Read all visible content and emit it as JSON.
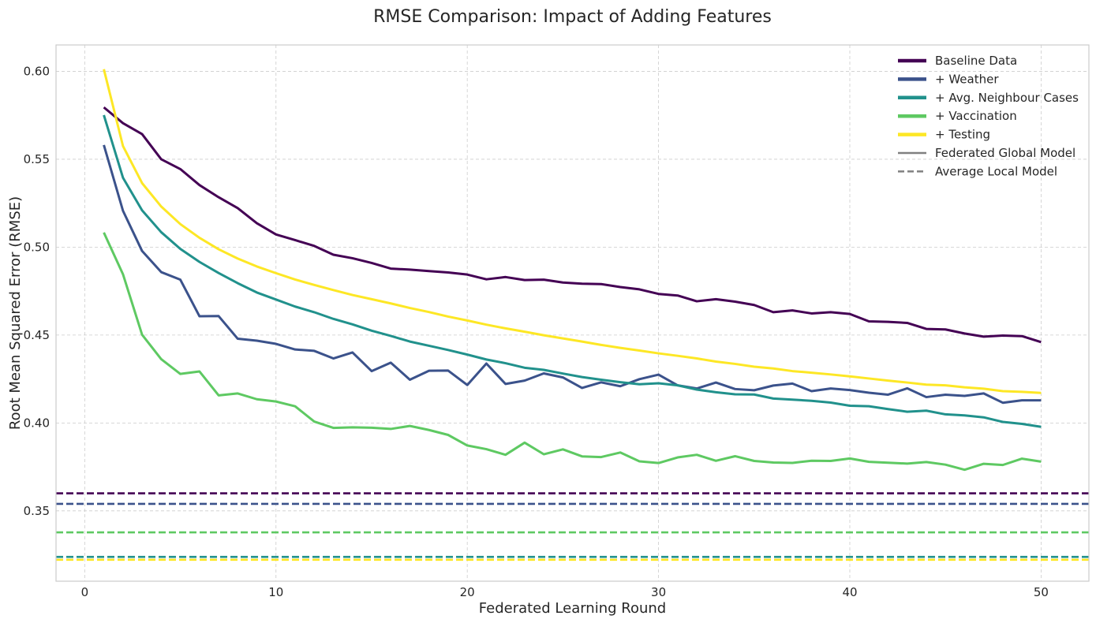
{
  "chart_data": {
    "type": "line",
    "title": "RMSE Comparison: Impact of Adding Features",
    "xlabel": "Federated Learning Round",
    "ylabel": "Root Mean Squared Error (RMSE)",
    "xlim": [
      -1.5,
      52.5
    ],
    "ylim": [
      0.31,
      0.615
    ],
    "xticks": [
      0,
      10,
      20,
      30,
      40,
      50
    ],
    "yticks": [
      0.35,
      0.4,
      0.45,
      0.5,
      0.55,
      0.6
    ],
    "grid": true,
    "legend_position": "top-right",
    "x": [
      1,
      2,
      3,
      4,
      5,
      6,
      7,
      8,
      9,
      10,
      11,
      12,
      13,
      14,
      15,
      16,
      17,
      18,
      19,
      20,
      21,
      22,
      23,
      24,
      25,
      26,
      27,
      28,
      29,
      30,
      31,
      32,
      33,
      34,
      35,
      36,
      37,
      38,
      39,
      40,
      41,
      42,
      43,
      44,
      45,
      46,
      47,
      48,
      49,
      50
    ],
    "series": [
      {
        "name": "Baseline Data",
        "color": "#440154",
        "values": [
          0.5795,
          0.5705,
          0.5643,
          0.55,
          0.5444,
          0.5353,
          0.5284,
          0.5222,
          0.5136,
          0.5072,
          0.504,
          0.5007,
          0.4957,
          0.4937,
          0.491,
          0.4878,
          0.4872,
          0.4864,
          0.4856,
          0.4844,
          0.4817,
          0.483,
          0.4813,
          0.4815,
          0.4799,
          0.4792,
          0.479,
          0.4773,
          0.476,
          0.4734,
          0.4725,
          0.4692,
          0.4704,
          0.469,
          0.4671,
          0.463,
          0.464,
          0.4623,
          0.463,
          0.462,
          0.4578,
          0.4575,
          0.4569,
          0.4535,
          0.4532,
          0.4509,
          0.4491,
          0.4497,
          0.4494,
          0.446
        ],
        "local_model_rmse": 0.36
      },
      {
        "name": "+ Weather",
        "color": "#3b528b",
        "values": [
          0.5581,
          0.5207,
          0.4978,
          0.4858,
          0.4815,
          0.4607,
          0.4608,
          0.4479,
          0.4468,
          0.445,
          0.4418,
          0.441,
          0.4367,
          0.4401,
          0.4295,
          0.4343,
          0.4246,
          0.4297,
          0.4298,
          0.4216,
          0.4338,
          0.4222,
          0.4241,
          0.4282,
          0.4259,
          0.4199,
          0.4231,
          0.4209,
          0.4249,
          0.4275,
          0.4214,
          0.4196,
          0.423,
          0.4193,
          0.4186,
          0.4213,
          0.4224,
          0.4181,
          0.4196,
          0.4187,
          0.4172,
          0.4161,
          0.4197,
          0.4147,
          0.4161,
          0.4154,
          0.4168,
          0.4115,
          0.4129,
          0.4129
        ],
        "local_model_rmse": 0.354
      },
      {
        "name": "+ Avg. Neighbour Cases",
        "color": "#21918c",
        "values": [
          0.5751,
          0.5395,
          0.5209,
          0.5085,
          0.499,
          0.4916,
          0.4853,
          0.4795,
          0.4742,
          0.4702,
          0.4662,
          0.463,
          0.4592,
          0.4561,
          0.4525,
          0.4495,
          0.4463,
          0.4439,
          0.4415,
          0.4389,
          0.4361,
          0.434,
          0.4314,
          0.4302,
          0.4281,
          0.4261,
          0.4246,
          0.4232,
          0.422,
          0.4226,
          0.4214,
          0.419,
          0.4175,
          0.4163,
          0.4162,
          0.4139,
          0.4133,
          0.4126,
          0.4116,
          0.4098,
          0.4095,
          0.4079,
          0.4064,
          0.407,
          0.4049,
          0.4043,
          0.4032,
          0.4006,
          0.3995,
          0.3978
        ],
        "local_model_rmse": 0.3238
      },
      {
        "name": "+ Vaccination",
        "color": "#5ec962",
        "values": [
          0.5083,
          0.4846,
          0.4502,
          0.4363,
          0.4279,
          0.4293,
          0.4157,
          0.4168,
          0.4135,
          0.4122,
          0.4095,
          0.4008,
          0.3972,
          0.3975,
          0.3973,
          0.3966,
          0.3983,
          0.396,
          0.3932,
          0.3872,
          0.3851,
          0.3819,
          0.3888,
          0.3822,
          0.385,
          0.381,
          0.3806,
          0.3832,
          0.3782,
          0.3772,
          0.3804,
          0.3819,
          0.3785,
          0.3811,
          0.3784,
          0.3775,
          0.3773,
          0.3785,
          0.3784,
          0.3798,
          0.3779,
          0.3774,
          0.3769,
          0.3778,
          0.3763,
          0.3734,
          0.3768,
          0.3761,
          0.3797,
          0.378
        ],
        "local_model_rmse": 0.3378
      },
      {
        "name": "+ Testing",
        "color": "#fde725",
        "values": [
          0.6012,
          0.5575,
          0.5364,
          0.5231,
          0.5131,
          0.5053,
          0.4988,
          0.4935,
          0.489,
          0.4852,
          0.4816,
          0.4785,
          0.4756,
          0.4728,
          0.4704,
          0.468,
          0.4654,
          0.4631,
          0.4605,
          0.4583,
          0.4559,
          0.4538,
          0.4519,
          0.4499,
          0.4481,
          0.4463,
          0.4444,
          0.4427,
          0.4412,
          0.4396,
          0.4382,
          0.4367,
          0.4349,
          0.4336,
          0.432,
          0.431,
          0.4295,
          0.4286,
          0.4276,
          0.4265,
          0.4253,
          0.4241,
          0.423,
          0.4218,
          0.4214,
          0.4203,
          0.4195,
          0.4181,
          0.4177,
          0.4171
        ],
        "local_model_rmse": 0.3222
      }
    ],
    "legend_style_entries": [
      {
        "label": "Federated Global Model",
        "style": "solid",
        "color": "#808080"
      },
      {
        "label": "Average Local Model",
        "style": "dashed",
        "color": "#808080"
      }
    ]
  }
}
